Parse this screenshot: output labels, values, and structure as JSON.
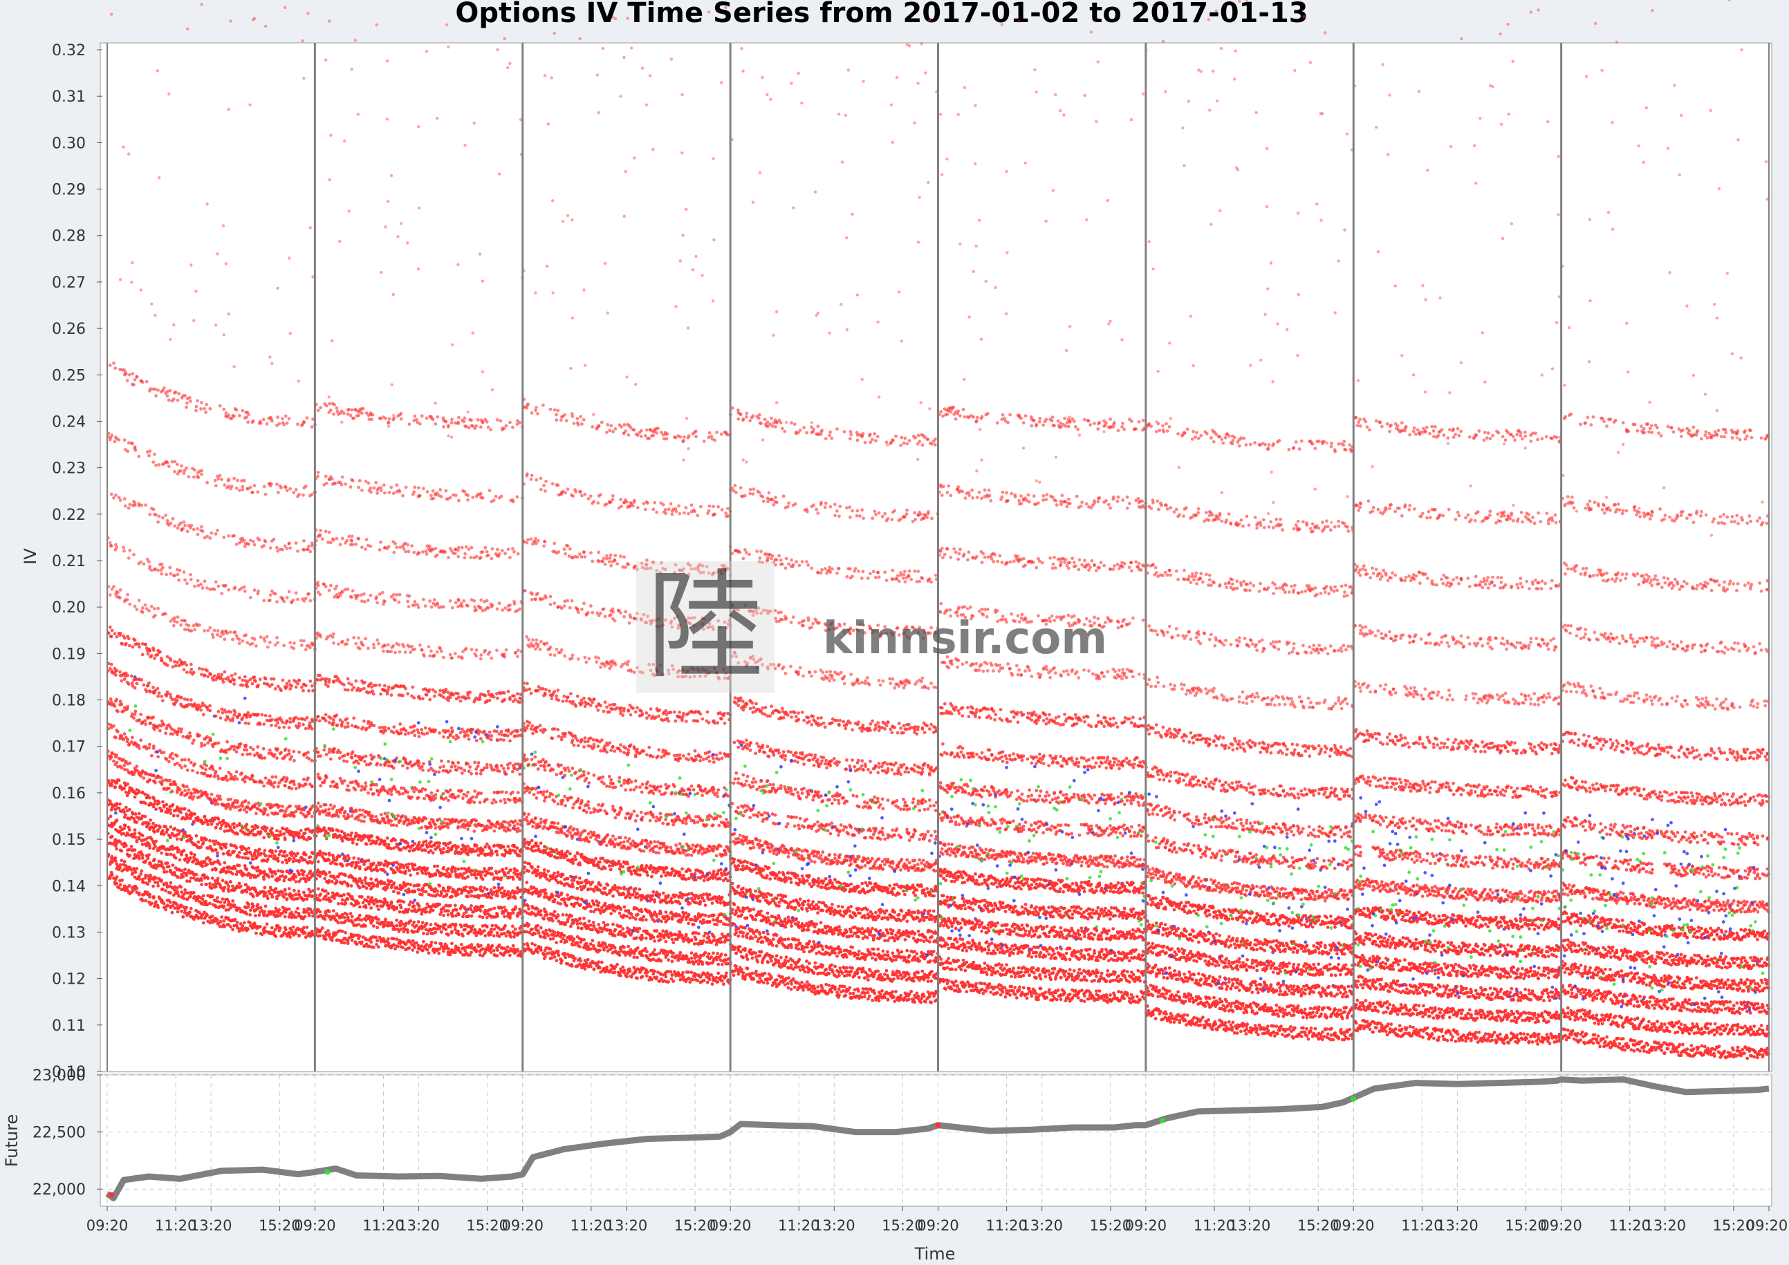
{
  "title": "Options IV Time Series from 2017-01-02 to 2017-01-13",
  "watermark": {
    "logo_glyph": "陸",
    "text": "kinnsir.com"
  },
  "colors": {
    "background": "#eceff3",
    "plot_background": "#ffffff",
    "day_separator": "#808080",
    "otm": "#ff3030",
    "atm": "#3040ff",
    "itm": "#30e030",
    "future_line": "#808080",
    "grid": "#c8c8c8"
  },
  "chart_data": [
    {
      "type": "scatter",
      "panel": "iv",
      "title": "Options IV Time Series from 2017-01-02 to 2017-01-13",
      "ylabel": "IV",
      "ylim": [
        0.1,
        0.32
      ],
      "yticks": [
        "0.10",
        "0.11",
        "0.12",
        "0.13",
        "0.14",
        "0.15",
        "0.16",
        "0.17",
        "0.18",
        "0.19",
        "0.20",
        "0.21",
        "0.22",
        "0.23",
        "0.24",
        "0.25",
        "0.26",
        "0.27",
        "0.28",
        "0.29",
        "0.30",
        "0.31",
        "0.32"
      ],
      "trading_days": 8,
      "day_separators": [
        1,
        2,
        3,
        4,
        5,
        6,
        7
      ],
      "grid": false,
      "series": [
        {
          "color_key": "otm",
          "description_values": {
            "iv_floor_by_day_start": [
              0.142,
              0.13,
              0.127,
              0.122,
              0.119,
              0.113,
              0.11,
              0.108
            ],
            "iv_floor_by_day_end": [
              0.13,
              0.126,
              0.12,
              0.116,
              0.116,
              0.108,
              0.107,
              0.104
            ]
          }
        },
        {
          "color_key": "atm",
          "range": [
            0.125,
            0.2
          ]
        },
        {
          "color_key": "itm",
          "range": [
            0.13,
            0.19
          ]
        }
      ]
    },
    {
      "type": "line",
      "panel": "future",
      "ylabel": "Future",
      "xlabel": "Time",
      "ylim": [
        21850,
        23000
      ],
      "yticks": [
        "22,000",
        "22,500",
        "23,000"
      ],
      "ytick_values": [
        22000,
        22500,
        23000
      ],
      "grid": true,
      "x_tick_labels": [
        "09:20",
        "11:20",
        "13:20",
        "15:20",
        "09:20",
        "11:20",
        "13:20",
        "15:20",
        "09:20",
        "11:20",
        "13:20",
        "15:20",
        "09:20",
        "11:20",
        "13:20",
        "15:20",
        "09:20",
        "11:20",
        "13:20",
        "15:20",
        "09:20",
        "11:20",
        "13:20",
        "15:20",
        "09:20",
        "11:20",
        "13:20",
        "15:20",
        "09:20",
        "11:20",
        "13:20",
        "15:20",
        "09:20"
      ],
      "series_points": [
        [
          0.0,
          21960
        ],
        [
          0.03,
          21920
        ],
        [
          0.08,
          22080
        ],
        [
          0.2,
          22110
        ],
        [
          0.35,
          22090
        ],
        [
          0.55,
          22160
        ],
        [
          0.75,
          22170
        ],
        [
          0.92,
          22130
        ],
        [
          1.0,
          22150
        ],
        [
          1.1,
          22180
        ],
        [
          1.2,
          22120
        ],
        [
          1.4,
          22110
        ],
        [
          1.6,
          22115
        ],
        [
          1.8,
          22090
        ],
        [
          1.95,
          22110
        ],
        [
          2.0,
          22130
        ],
        [
          2.05,
          22280
        ],
        [
          2.2,
          22350
        ],
        [
          2.4,
          22400
        ],
        [
          2.6,
          22440
        ],
        [
          2.8,
          22450
        ],
        [
          2.95,
          22460
        ],
        [
          3.0,
          22500
        ],
        [
          3.05,
          22570
        ],
        [
          3.2,
          22560
        ],
        [
          3.4,
          22550
        ],
        [
          3.6,
          22500
        ],
        [
          3.8,
          22500
        ],
        [
          3.95,
          22530
        ],
        [
          4.0,
          22560
        ],
        [
          4.1,
          22540
        ],
        [
          4.25,
          22510
        ],
        [
          4.45,
          22520
        ],
        [
          4.65,
          22540
        ],
        [
          4.85,
          22540
        ],
        [
          4.95,
          22560
        ],
        [
          5.0,
          22560
        ],
        [
          5.1,
          22620
        ],
        [
          5.25,
          22680
        ],
        [
          5.45,
          22690
        ],
        [
          5.65,
          22700
        ],
        [
          5.85,
          22720
        ],
        [
          5.95,
          22760
        ],
        [
          6.0,
          22800
        ],
        [
          6.1,
          22880
        ],
        [
          6.3,
          22930
        ],
        [
          6.5,
          22920
        ],
        [
          6.7,
          22930
        ],
        [
          6.9,
          22940
        ],
        [
          6.98,
          22950
        ],
        [
          7.0,
          22960
        ],
        [
          7.1,
          22950
        ],
        [
          7.3,
          22960
        ],
        [
          7.45,
          22900
        ],
        [
          7.6,
          22850
        ],
        [
          7.8,
          22860
        ],
        [
          7.95,
          22870
        ],
        [
          8.0,
          22880
        ]
      ],
      "markers": [
        {
          "x": 0.02,
          "y": 21950,
          "color_key": "otm"
        },
        {
          "x": 1.06,
          "y": 22150,
          "color_key": "itm"
        },
        {
          "x": 4.0,
          "y": 22560,
          "color_key": "otm"
        },
        {
          "x": 5.08,
          "y": 22600,
          "color_key": "itm"
        },
        {
          "x": 6.0,
          "y": 22790,
          "color_key": "itm"
        }
      ]
    }
  ]
}
